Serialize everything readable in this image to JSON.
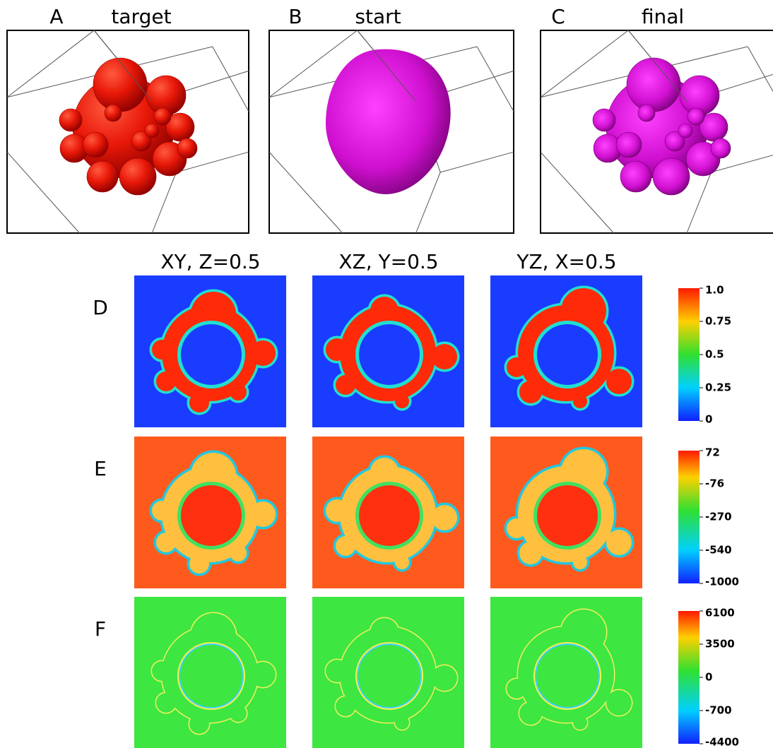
{
  "panels": [
    {
      "letter": "A",
      "title": "target"
    },
    {
      "letter": "B",
      "title": "start"
    },
    {
      "letter": "C",
      "title": "final"
    }
  ],
  "columns": [
    "XY, Z=0.5",
    "XZ, Y=0.5",
    "YZ, X=0.5"
  ],
  "rows": [
    {
      "letter": "D",
      "colorbar": [
        "1.0",
        "0.75",
        "0.5",
        "0.25",
        "0"
      ]
    },
    {
      "letter": "E",
      "colorbar": [
        "72",
        "-76",
        "-270",
        "-540",
        "-1000"
      ]
    },
    {
      "letter": "F",
      "colorbar": [
        "6100",
        "3500",
        "0",
        "-700",
        "-4400"
      ]
    }
  ]
}
